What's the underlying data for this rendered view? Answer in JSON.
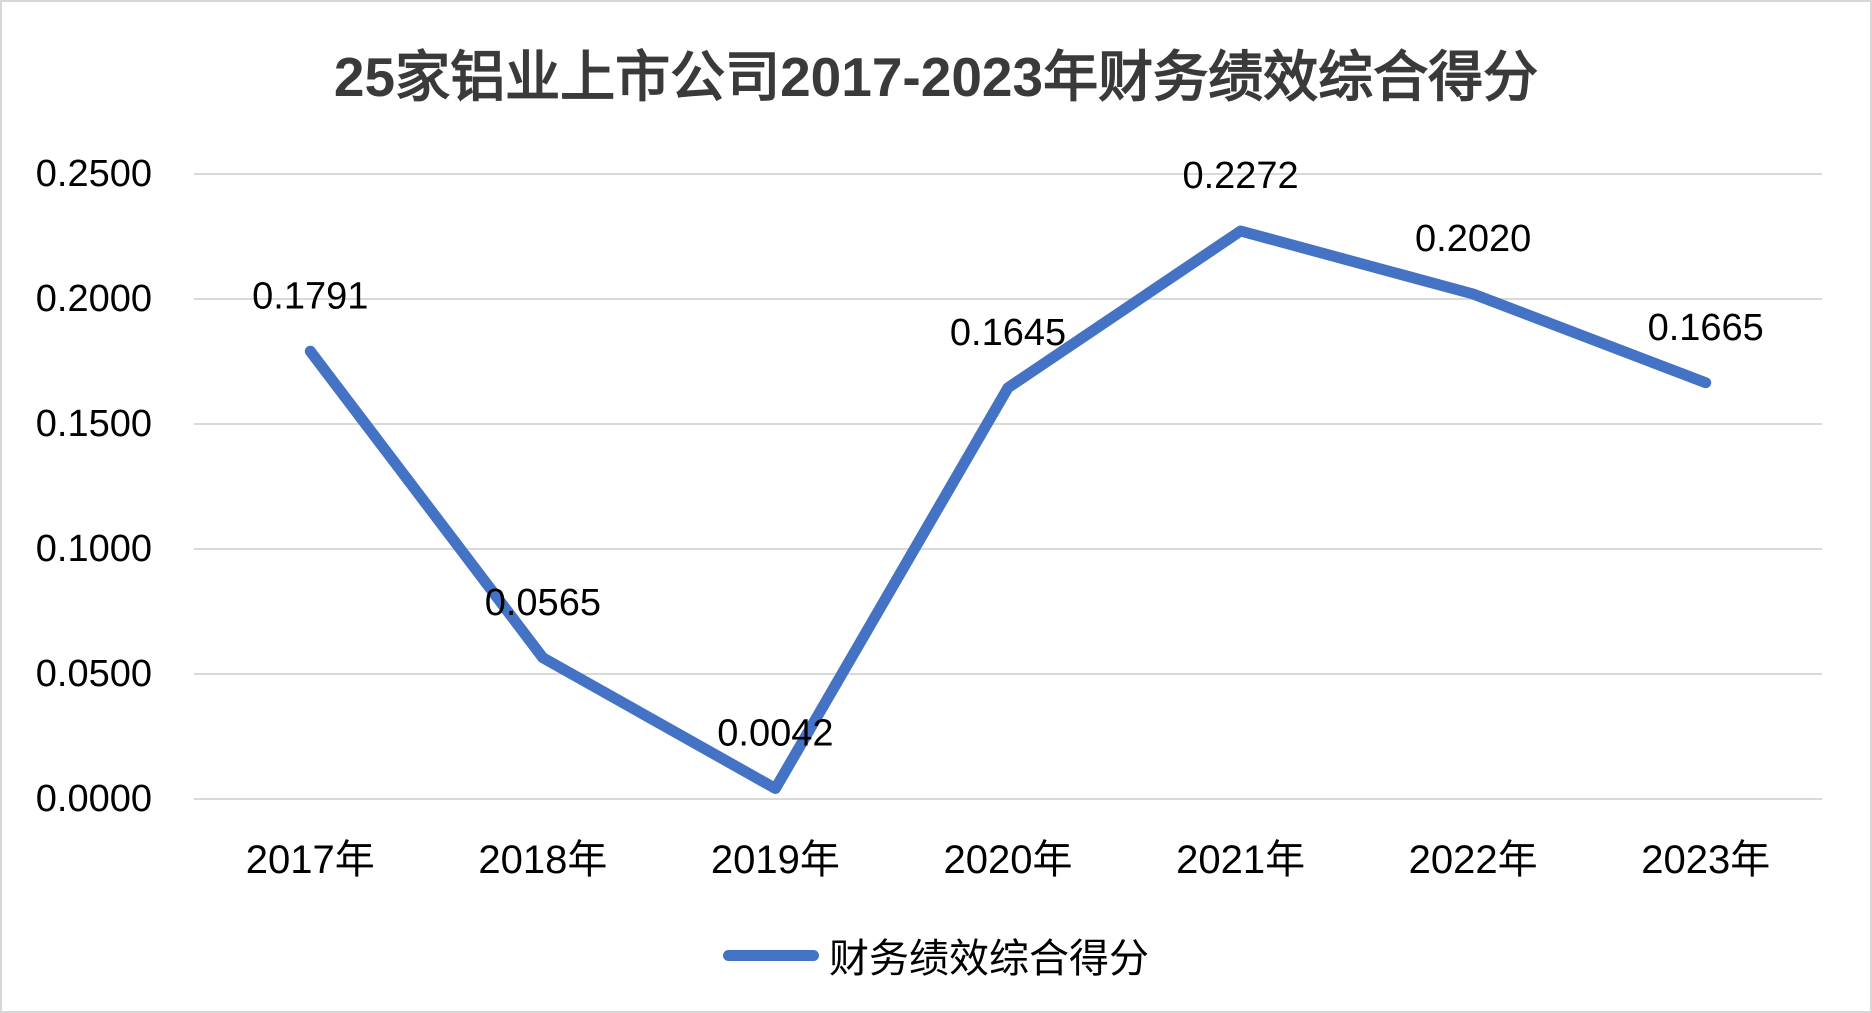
{
  "title": "25家铝业上市公司2017-2023年财务绩效综合得分",
  "legend": {
    "label": "财务绩效综合得分",
    "line_color": "#4472C4"
  },
  "colors": {
    "series_line": "#4472C4",
    "gridline": "#D9D9D9",
    "label_text": "#000000",
    "title_text": "#3A3A3A",
    "figure_border": "#D7D7D7",
    "background": "#FFFFFF"
  },
  "chart_data": {
    "type": "line",
    "title": "25家铝业上市公司2017-2023年财务绩效综合得分",
    "categories": [
      "2017年",
      "2018年",
      "2019年",
      "2020年",
      "2021年",
      "2022年",
      "2023年"
    ],
    "series": [
      {
        "name": "财务绩效综合得分",
        "values": [
          0.1791,
          0.0565,
          0.0042,
          0.1645,
          0.2272,
          0.202,
          0.1665
        ]
      }
    ],
    "data_labels": [
      "0.1791",
      "0.0565",
      "0.0042",
      "0.1645",
      "0.2272",
      "0.2020",
      "0.1665"
    ],
    "xlabel": "",
    "ylabel": "",
    "ylim": [
      0,
      0.25
    ],
    "ytick_step": 0.05,
    "ytick_labels": [
      "0.0000",
      "0.0500",
      "0.1000",
      "0.1500",
      "0.2000",
      "0.2500"
    ],
    "grid": true,
    "legend_position": "bottom"
  }
}
